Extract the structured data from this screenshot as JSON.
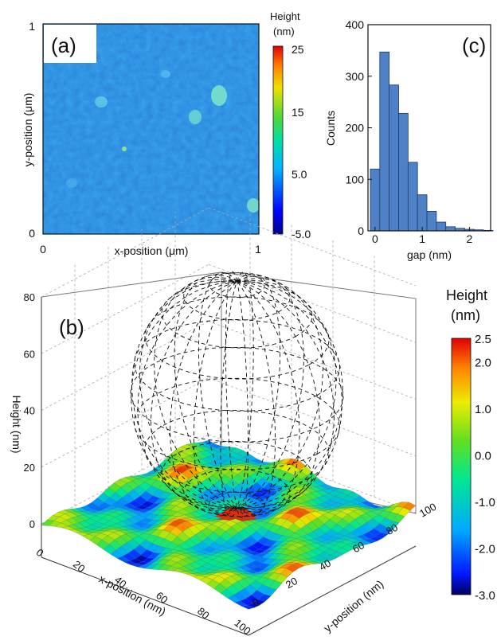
{
  "chart_data": [
    {
      "panel": "(a)",
      "type": "heatmap",
      "xlabel": "x-position (μm)",
      "ylabel": "y-position (μm)",
      "xlim": [
        0,
        1
      ],
      "ylim": [
        0,
        1
      ],
      "x_ticks": [
        "0",
        "1"
      ],
      "y_ticks": [
        "0",
        "1"
      ],
      "colorbar": {
        "title_line1": "Height",
        "title_line2": "(nm)",
        "ticks": [
          "25",
          "15",
          "5.0",
          "-5.0"
        ],
        "range": [
          -5.0,
          25
        ]
      },
      "base_color": "#2c82dc"
    },
    {
      "panel": "(c)",
      "type": "bar",
      "xlabel": "gap (nm)",
      "ylabel": "Counts",
      "xlim": [
        -0.15,
        2.45
      ],
      "ylim": [
        0,
        400
      ],
      "x_ticks": [
        "0",
        "1",
        "2"
      ],
      "y_ticks": [
        "0",
        "100",
        "200",
        "300",
        "400"
      ],
      "bin_width": 0.2,
      "bin_starts": [
        -0.1,
        0.1,
        0.3,
        0.5,
        0.7,
        0.9,
        1.1,
        1.3,
        1.5,
        1.7,
        1.9,
        2.1,
        2.3
      ],
      "values": [
        120,
        347,
        283,
        228,
        133,
        70,
        38,
        17,
        8,
        5,
        3,
        2,
        1
      ],
      "bar_color": "#4f81c7"
    },
    {
      "panel": "(b)",
      "type": "surface3d",
      "xlabel": "x-position (nm)",
      "ylabel": "y-position (nm)",
      "zlabel": "Height (nm)",
      "x_ticks": [
        "0",
        "20",
        "40",
        "60",
        "80",
        "100"
      ],
      "y_ticks": [
        "0",
        "20",
        "40",
        "60",
        "80",
        "100"
      ],
      "z_ticks": [
        "0",
        "20",
        "40",
        "60",
        "80"
      ],
      "xlim": [
        0,
        100
      ],
      "ylim": [
        0,
        100
      ],
      "zlim": [
        0,
        80
      ],
      "sphere_diameter": 80,
      "colorbar": {
        "title_line1": "Height",
        "title_line2": "(nm)",
        "ticks": [
          "2.5",
          "2.0",
          "1.0",
          "0.0",
          "-1.0",
          "-2.0",
          "-3.0"
        ],
        "range": [
          -3.0,
          2.5
        ]
      }
    }
  ]
}
